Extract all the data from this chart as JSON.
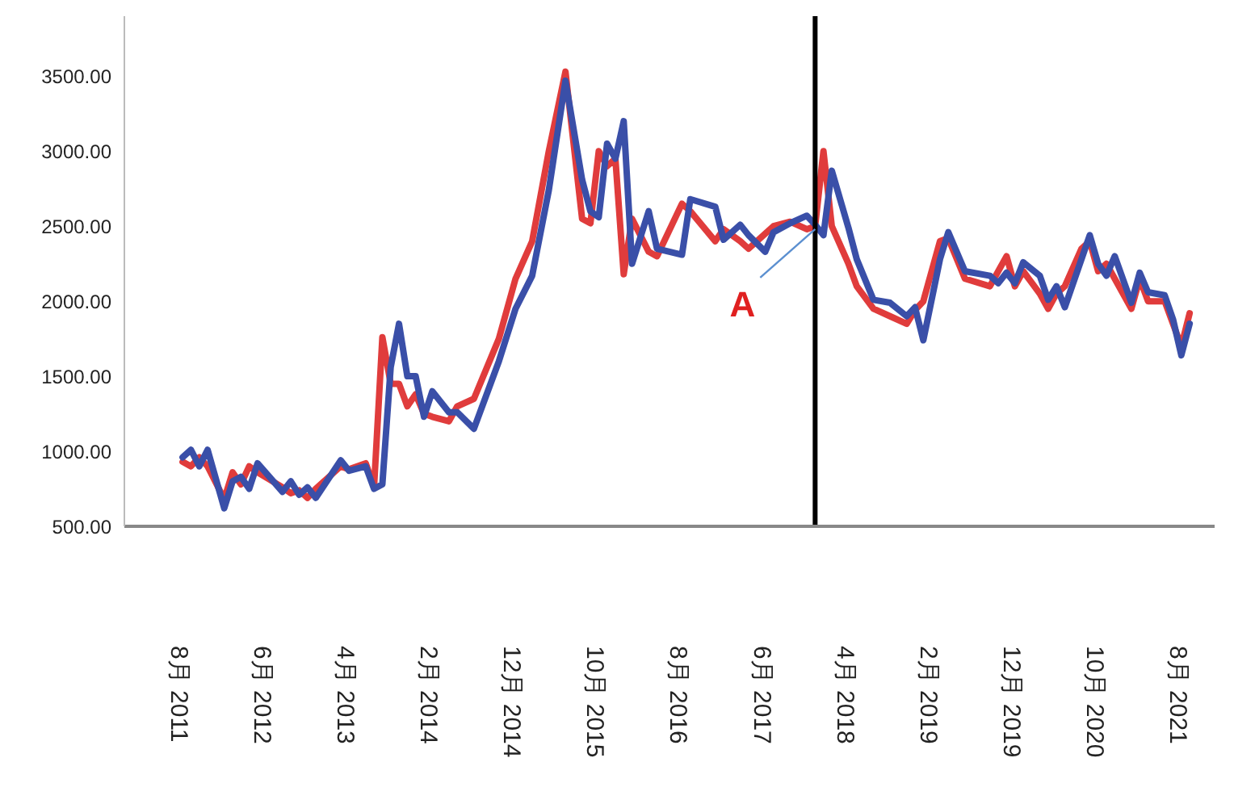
{
  "chart_data": {
    "type": "line",
    "xlim": [
      "2011-01",
      "2021-12"
    ],
    "xticks": [
      {
        "value": "2011-08",
        "label": "8月 2011"
      },
      {
        "value": "2012-06",
        "label": "6月 2012"
      },
      {
        "value": "2013-04",
        "label": "4月 2013"
      },
      {
        "value": "2014-02",
        "label": "2月 2014"
      },
      {
        "value": "2014-12",
        "label": "12月 2014"
      },
      {
        "value": "2015-10",
        "label": "10月 2015"
      },
      {
        "value": "2016-08",
        "label": "8月 2016"
      },
      {
        "value": "2017-06",
        "label": "6月 2017"
      },
      {
        "value": "2018-04",
        "label": "4月 2018"
      },
      {
        "value": "2019-02",
        "label": "2月 2019"
      },
      {
        "value": "2019-12",
        "label": "12月 2019"
      },
      {
        "value": "2020-10",
        "label": "10月 2020"
      },
      {
        "value": "2021-08",
        "label": "8月 2021"
      }
    ],
    "ylim": [
      500,
      3900
    ],
    "yticks": [
      {
        "value": 500,
        "label": "500.00"
      },
      {
        "value": 1000,
        "label": "1000.00"
      },
      {
        "value": 1500,
        "label": "1500.00"
      },
      {
        "value": 2000,
        "label": "2000.00"
      },
      {
        "value": 2500,
        "label": "2500.00"
      },
      {
        "value": 3000,
        "label": "3000.00"
      },
      {
        "value": 3500,
        "label": "3500.00"
      }
    ],
    "grid": false,
    "legend": false,
    "marker": "none",
    "line_style": "solid",
    "ref_lines": [
      {
        "axis": "x",
        "value": "2017-12",
        "color": "#000000"
      }
    ],
    "annotations": [
      {
        "text": "A",
        "x": "2017-12",
        "y": 2480
      }
    ],
    "series": [
      {
        "color": "#e03c3c",
        "x": [
          "2011-08",
          "2011-09",
          "2011-10",
          "2011-11",
          "2012-01",
          "2012-02",
          "2012-03",
          "2012-04",
          "2012-05",
          "2012-08",
          "2012-09",
          "2012-10",
          "2012-11",
          "2012-12",
          "2013-03",
          "2013-04",
          "2013-06",
          "2013-07",
          "2013-08",
          "2013-09",
          "2013-10",
          "2013-11",
          "2013-12",
          "2014-01",
          "2014-02",
          "2014-04",
          "2014-05",
          "2014-07",
          "2014-10",
          "2014-12",
          "2015-02",
          "2015-04",
          "2015-06",
          "2015-08",
          "2015-09",
          "2015-10",
          "2015-11",
          "2015-12",
          "2016-01",
          "2016-02",
          "2016-04",
          "2016-05",
          "2016-08",
          "2016-09",
          "2016-12",
          "2017-01",
          "2017-03",
          "2017-04",
          "2017-06",
          "2017-07",
          "2017-09",
          "2017-11",
          "2017-12",
          "2018-01",
          "2018-02",
          "2018-04",
          "2018-05",
          "2018-07",
          "2018-09",
          "2018-11",
          "2018-12",
          "2019-01",
          "2019-03",
          "2019-04",
          "2019-06",
          "2019-09",
          "2019-10",
          "2019-11",
          "2019-12",
          "2020-01",
          "2020-03",
          "2020-04",
          "2020-05",
          "2020-06",
          "2020-08",
          "2020-09",
          "2020-10",
          "2020-11",
          "2020-12",
          "2021-02",
          "2021-03",
          "2021-04",
          "2021-06",
          "2021-07",
          "2021-08",
          "2021-09"
        ],
        "values": [
          930,
          900,
          960,
          900,
          680,
          860,
          780,
          900,
          860,
          760,
          720,
          740,
          690,
          750,
          900,
          880,
          920,
          760,
          1760,
          1450,
          1450,
          1300,
          1380,
          1250,
          1230,
          1200,
          1300,
          1350,
          1750,
          2150,
          2400,
          3000,
          3530,
          2550,
          2520,
          3000,
          2900,
          2950,
          2180,
          2550,
          2330,
          2300,
          2650,
          2600,
          2400,
          2480,
          2400,
          2350,
          2450,
          2500,
          2530,
          2480,
          2500,
          3000,
          2500,
          2250,
          2100,
          1950,
          1900,
          1850,
          1940,
          2000,
          2400,
          2420,
          2150,
          2100,
          2200,
          2300,
          2100,
          2200,
          2050,
          1950,
          2050,
          2100,
          2350,
          2400,
          2200,
          2250,
          2150,
          1950,
          2150,
          2000,
          2000,
          1850,
          1700,
          1920
        ]
      },
      {
        "color": "#3a4fa8",
        "x": [
          "2011-08",
          "2011-09",
          "2011-10",
          "2011-11",
          "2012-01",
          "2012-02",
          "2012-03",
          "2012-04",
          "2012-05",
          "2012-08",
          "2012-09",
          "2012-10",
          "2012-11",
          "2012-12",
          "2013-03",
          "2013-04",
          "2013-06",
          "2013-07",
          "2013-08",
          "2013-09",
          "2013-10",
          "2013-11",
          "2013-12",
          "2014-01",
          "2014-02",
          "2014-04",
          "2014-05",
          "2014-07",
          "2014-10",
          "2014-12",
          "2015-02",
          "2015-04",
          "2015-06",
          "2015-08",
          "2015-09",
          "2015-10",
          "2015-11",
          "2015-12",
          "2016-01",
          "2016-02",
          "2016-04",
          "2016-05",
          "2016-08",
          "2016-09",
          "2016-12",
          "2017-01",
          "2017-03",
          "2017-04",
          "2017-06",
          "2017-07",
          "2017-09",
          "2017-11",
          "2017-12",
          "2018-01",
          "2018-02",
          "2018-04",
          "2018-05",
          "2018-07",
          "2018-09",
          "2018-11",
          "2018-12",
          "2019-01",
          "2019-03",
          "2019-04",
          "2019-06",
          "2019-09",
          "2019-10",
          "2019-11",
          "2019-12",
          "2020-01",
          "2020-03",
          "2020-04",
          "2020-05",
          "2020-06",
          "2020-08",
          "2020-09",
          "2020-10",
          "2020-11",
          "2020-12",
          "2021-02",
          "2021-03",
          "2021-04",
          "2021-06",
          "2021-07",
          "2021-08",
          "2021-09"
        ],
        "values": [
          960,
          1010,
          900,
          1010,
          620,
          800,
          830,
          750,
          920,
          730,
          800,
          710,
          760,
          690,
          940,
          870,
          900,
          750,
          780,
          1560,
          1850,
          1500,
          1500,
          1230,
          1400,
          1260,
          1260,
          1150,
          1600,
          1950,
          2170,
          2740,
          3470,
          2810,
          2600,
          2560,
          3050,
          2950,
          3200,
          2250,
          2600,
          2350,
          2310,
          2680,
          2630,
          2410,
          2510,
          2440,
          2330,
          2460,
          2520,
          2570,
          2510,
          2440,
          2870,
          2490,
          2280,
          2010,
          1990,
          1900,
          1960,
          1740,
          2280,
          2460,
          2200,
          2170,
          2120,
          2190,
          2120,
          2260,
          2170,
          2010,
          2100,
          1960,
          2280,
          2440,
          2250,
          2170,
          2300,
          1990,
          2190,
          2060,
          2040,
          1880,
          1640,
          1850
        ]
      }
    ]
  }
}
